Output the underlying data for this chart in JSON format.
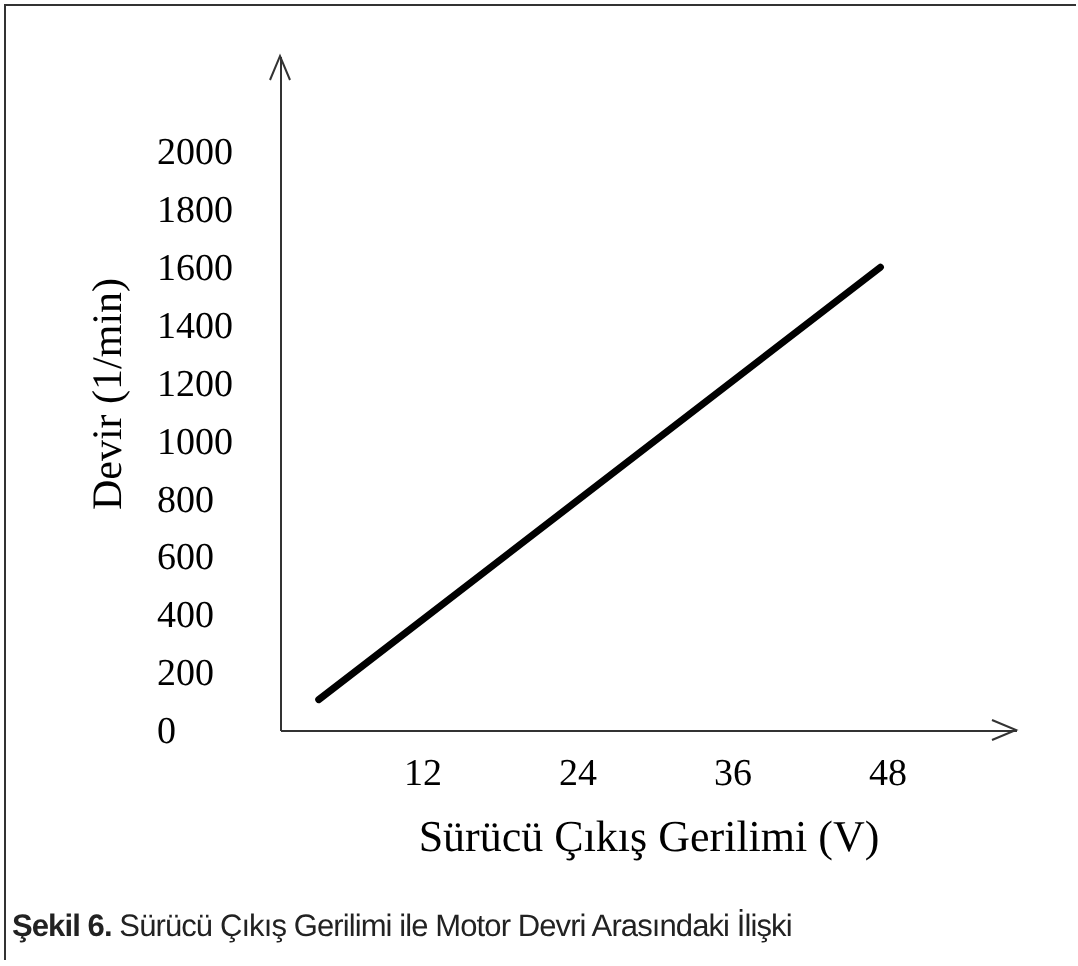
{
  "chart_data": {
    "type": "line",
    "xlabel": "Sürücü Çıkış Gerilimi (V)",
    "ylabel": "Devir (1/min)",
    "annotations": [
      "Şekil 6. Sürücü Çıkış Gerilimi ile Motor Devri Arasındaki İlişki"
    ],
    "x": [
      4,
      47.5
    ],
    "series": [
      {
        "color": "#000000",
        "values": [
          105,
          1600
        ]
      }
    ],
    "xlim": [
      1,
      58
    ],
    "xticks": [
      12,
      24,
      36,
      48
    ],
    "ylim": [
      0,
      2330
    ],
    "yticks": [
      0,
      200,
      400,
      600,
      800,
      1000,
      1200,
      1400,
      1600,
      1800,
      2000
    ],
    "grid": false,
    "legend": false,
    "marker": "none",
    "line_style": "solid"
  }
}
